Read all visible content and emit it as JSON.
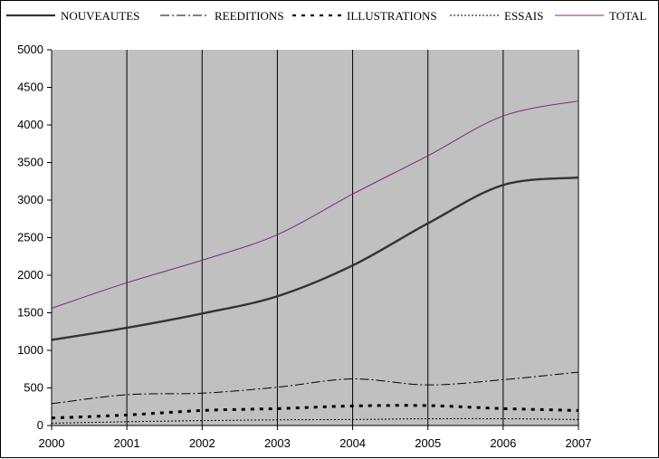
{
  "chart_data": {
    "type": "line",
    "title": "",
    "xlabel": "",
    "ylabel": "",
    "x": [
      2000,
      2001,
      2002,
      2003,
      2004,
      2005,
      2006,
      2007
    ],
    "ylim": [
      0,
      5000
    ],
    "yticks": [
      0,
      500,
      1000,
      1500,
      2000,
      2500,
      3000,
      3500,
      4000,
      4500,
      5000
    ],
    "grid": "vertical",
    "plot_background": "#c0c0c0",
    "legend_position": "top",
    "series": [
      {
        "name": "NOUVEAUTES",
        "values": [
          1140,
          1300,
          1490,
          1720,
          2130,
          2690,
          3200,
          3300
        ],
        "color": "#333333",
        "style": "solid-thick"
      },
      {
        "name": "REEDITIONS",
        "values": [
          290,
          410,
          430,
          510,
          620,
          540,
          610,
          710
        ],
        "color": "#000000",
        "style": "dash-dot"
      },
      {
        "name": "ILLUSTRATIONS",
        "values": [
          100,
          140,
          200,
          225,
          260,
          265,
          225,
          200
        ],
        "color": "#000000",
        "style": "dashed-thick"
      },
      {
        "name": "ESSAIS",
        "values": [
          30,
          50,
          65,
          75,
          80,
          90,
          90,
          80
        ],
        "color": "#000000",
        "style": "dotted"
      },
      {
        "name": "TOTAL",
        "values": [
          1560,
          1900,
          2200,
          2540,
          3080,
          3590,
          4120,
          4320
        ],
        "color": "#7b2a7b",
        "style": "solid"
      }
    ]
  }
}
